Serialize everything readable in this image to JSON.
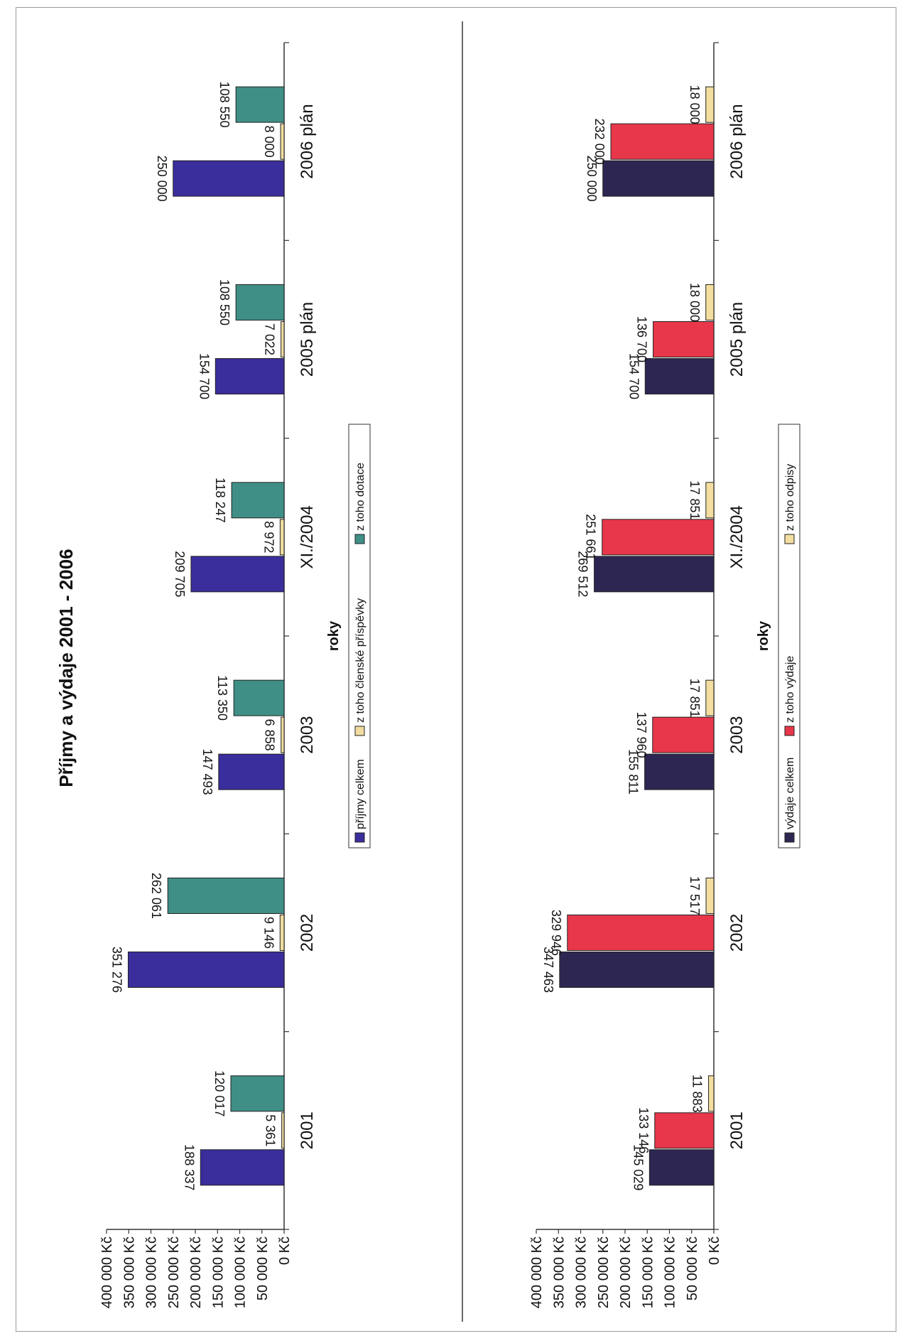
{
  "title": "Příjmy a výdaje 2001 - 2006",
  "colors": {
    "prijmy_celkem": "#3a2d9c",
    "clenske_prispevky": "#f0dca0",
    "dotace": "#3f8f86",
    "vydaje_celkem": "#2e2652",
    "vydaje": "#e8364a",
    "odpisy": "#f3dea0"
  },
  "chart_data": [
    {
      "type": "bar",
      "title": "",
      "xlabel": "roky",
      "ylabel": "",
      "categories": [
        "2001",
        "2002",
        "2003",
        "XI./2004",
        "2005 plán",
        "2006 plán"
      ],
      "ylim": [
        0,
        400000
      ],
      "yticks": [
        "0 Kč",
        "50 000 Kč",
        "100 000 Kč",
        "150 000 Kč",
        "200 000 Kč",
        "250 000 Kč",
        "300 000 Kč",
        "350 000 Kč",
        "400 000 Kč"
      ],
      "legend_position": "bottom",
      "series": [
        {
          "name": "příjmy celkem",
          "color_key": "prijmy_celkem",
          "values": [
            188337,
            351276,
            147493,
            209705,
            154700,
            250000
          ],
          "labels": [
            "188 337",
            "351 276",
            "147 493",
            "209 705",
            "154 700",
            "250 000"
          ]
        },
        {
          "name": "z toho členské příspěvky",
          "color_key": "clenske_prispevky",
          "values": [
            5361,
            9146,
            6858,
            8972,
            7022,
            8000
          ],
          "labels": [
            "5 361",
            "9 146",
            "6 858",
            "8 972",
            "7 022",
            "8 000"
          ]
        },
        {
          "name": "z toho dotace",
          "color_key": "dotace",
          "values": [
            120017,
            262061,
            113350,
            118247,
            108550,
            108550
          ],
          "labels": [
            "120 017",
            "262 061",
            "113 350",
            "118 247",
            "108 550",
            "108 550"
          ]
        }
      ]
    },
    {
      "type": "bar",
      "title": "",
      "xlabel": "roky",
      "ylabel": "",
      "categories": [
        "2001",
        "2002",
        "2003",
        "XI./2004",
        "2005 plán",
        "2006 plán"
      ],
      "ylim": [
        0,
        400000
      ],
      "yticks": [
        "0 Kč",
        "50 000 Kč",
        "100 000 Kč",
        "150 000 Kč",
        "200 000 Kč",
        "250 000 Kč",
        "300 000 Kč",
        "350 000 Kč",
        "400 000 Kč"
      ],
      "legend_position": "bottom",
      "series": [
        {
          "name": "výdaje celkem",
          "color_key": "vydaje_celkem",
          "values": [
            145029,
            347463,
            155811,
            269512,
            154700,
            250000
          ],
          "labels": [
            "145 029",
            "347 463",
            "155 811",
            "269 512",
            "154 700",
            "250 000"
          ]
        },
        {
          "name": "z toho výdaje",
          "color_key": "vydaje",
          "values": [
            133146,
            329946,
            137960,
            251661,
            136700,
            232000
          ],
          "labels": [
            "133 146",
            "329 946",
            "137 960",
            "251 661",
            "136 700",
            "232 000"
          ]
        },
        {
          "name": "z toho odpisy",
          "color_key": "odpisy",
          "values": [
            11883,
            17517,
            17851,
            17851,
            18000,
            18000
          ],
          "labels": [
            "11 883",
            "17 517",
            "17 851",
            "17 851",
            "18 000",
            "18 000"
          ]
        }
      ]
    }
  ]
}
